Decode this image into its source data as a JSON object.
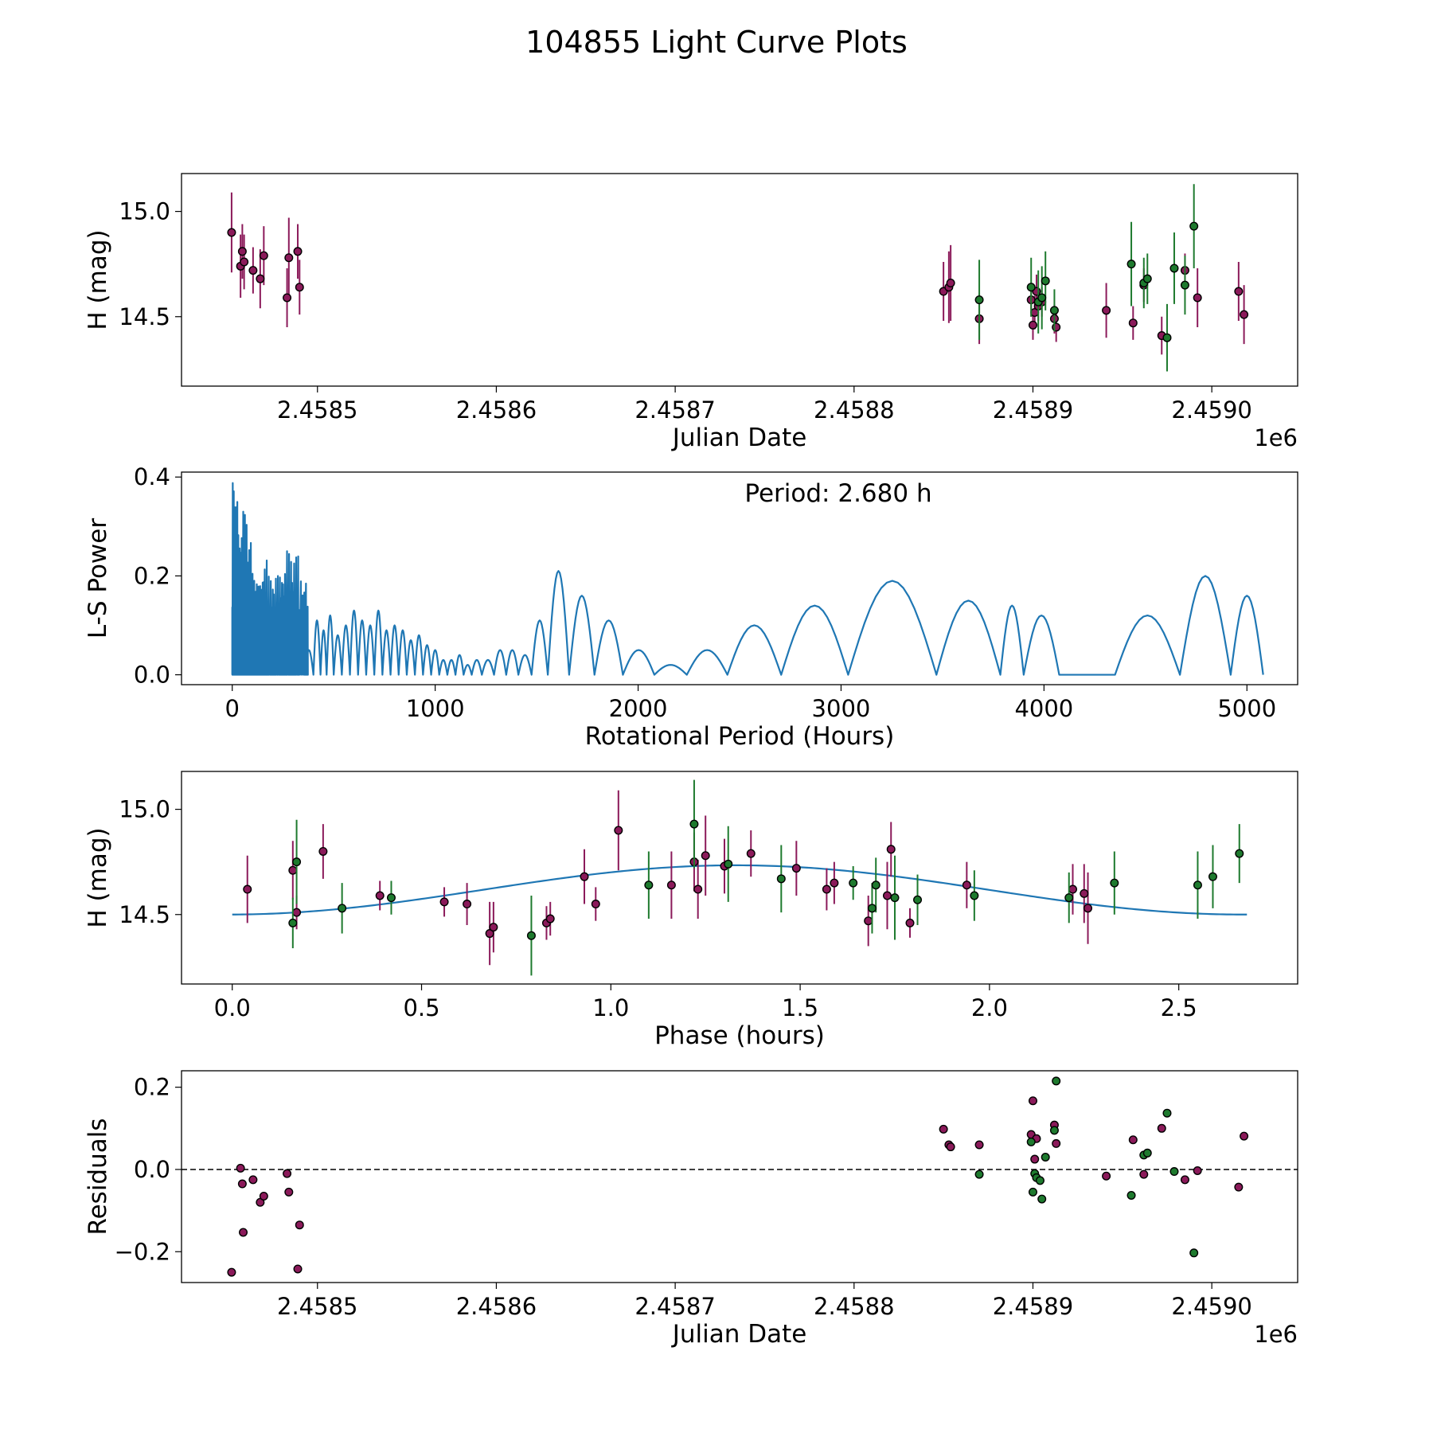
{
  "figure": {
    "title": "104855 Light Curve Plots"
  },
  "colors": {
    "magenta": "#8b1a5a",
    "green": "#1e7a2e",
    "line": "#1f77b4",
    "marker_edge": "#000000"
  },
  "chart_data": [
    {
      "type": "scatter",
      "title": "",
      "xlabel": "Julian Date",
      "ylabel": "H (mag)",
      "x_offset_label": "1e6",
      "xlim": [
        2458424,
        2459048
      ],
      "ylim": [
        14.17,
        15.18
      ],
      "xticks": [
        2458500,
        2458600,
        2458700,
        2458800,
        2458900,
        2459000
      ],
      "xtick_labels": [
        "2.4585",
        "2.4586",
        "2.4587",
        "2.4588",
        "2.4589",
        "2.4590"
      ],
      "yticks": [
        14.5,
        15.0
      ],
      "ytick_labels": [
        "14.5",
        "15.0"
      ],
      "series": [
        {
          "name": "magenta",
          "color": "magenta",
          "points": [
            [
              2458452,
              14.9,
              0.19
            ],
            [
              2458457,
              14.74,
              0.15
            ],
            [
              2458458,
              14.81,
              0.13
            ],
            [
              2458459,
              14.76,
              0.13
            ],
            [
              2458464,
              14.72,
              0.11
            ],
            [
              2458468,
              14.68,
              0.14
            ],
            [
              2458470,
              14.79,
              0.14
            ],
            [
              2458483,
              14.59,
              0.14
            ],
            [
              2458484,
              14.78,
              0.19
            ],
            [
              2458489,
              14.81,
              0.13
            ],
            [
              2458490,
              14.64,
              0.13
            ],
            [
              2458850,
              14.62,
              0.14
            ],
            [
              2458853,
              14.64,
              0.17
            ],
            [
              2458854,
              14.66,
              0.18
            ],
            [
              2458870,
              14.49,
              0.12
            ],
            [
              2458899,
              14.58,
              0.08
            ],
            [
              2458900,
              14.46,
              0.07
            ],
            [
              2458901,
              14.52,
              0.08
            ],
            [
              2458902,
              14.62,
              0.08
            ],
            [
              2458903,
              14.55,
              0.07
            ],
            [
              2458905,
              14.57,
              0.07
            ],
            [
              2458912,
              14.49,
              0.07
            ],
            [
              2458913,
              14.45,
              0.07
            ],
            [
              2458941,
              14.53,
              0.13
            ],
            [
              2458956,
              14.47,
              0.08
            ],
            [
              2458962,
              14.65,
              0.08
            ],
            [
              2458972,
              14.41,
              0.09
            ],
            [
              2458985,
              14.72,
              0.08
            ],
            [
              2458992,
              14.59,
              0.14
            ],
            [
              2459015,
              14.62,
              0.14
            ],
            [
              2459018,
              14.51,
              0.14
            ]
          ]
        },
        {
          "name": "green",
          "color": "green",
          "points": [
            [
              2458870,
              14.58,
              0.19
            ],
            [
              2458899,
              14.64,
              0.14
            ],
            [
              2458903,
              14.57,
              0.15
            ],
            [
              2458905,
              14.59,
              0.15
            ],
            [
              2458907,
              14.67,
              0.14
            ],
            [
              2458912,
              14.53,
              0.1
            ],
            [
              2458955,
              14.75,
              0.2
            ],
            [
              2458962,
              14.66,
              0.12
            ],
            [
              2458964,
              14.68,
              0.12
            ],
            [
              2458975,
              14.4,
              0.16
            ],
            [
              2458979,
              14.73,
              0.17
            ],
            [
              2458985,
              14.65,
              0.14
            ],
            [
              2458990,
              14.93,
              0.2
            ]
          ]
        }
      ]
    },
    {
      "type": "line",
      "title": "",
      "xlabel": "Rotational Period (Hours)",
      "ylabel": "L-S Power",
      "annotation": "Period: 2.680 h",
      "xlim": [
        -250,
        5250
      ],
      "ylim": [
        -0.02,
        0.41
      ],
      "xticks": [
        0,
        1000,
        2000,
        3000,
        4000,
        5000
      ],
      "xtick_labels": [
        "0",
        "1000",
        "2000",
        "3000",
        "4000",
        "5000"
      ],
      "yticks": [
        0.0,
        0.2,
        0.4
      ],
      "ytick_labels": [
        "0.0",
        "0.2",
        "0.4"
      ],
      "series": [
        {
          "name": "L-S power",
          "color": "line",
          "peaks_x": [
            0,
            15,
            30,
            50,
            75,
            100,
            125,
            150,
            180,
            210,
            240,
            270,
            300,
            330,
            380,
            420,
            450,
            480,
            520,
            560,
            600,
            640,
            680,
            720,
            760,
            800,
            840,
            880,
            920,
            960,
            1000,
            1040,
            1080,
            1120,
            1160,
            1200,
            1260,
            1320,
            1380,
            1440,
            1510,
            1600,
            1720,
            1850,
            2000,
            2160,
            2320,
            2560,
            2850,
            3220,
            3720,
            3850,
            3950,
            4200,
            4500,
            4840,
            5000
          ],
          "peaks_y": [
            0.39,
            0.35,
            0.3,
            0.33,
            0.27,
            0.21,
            0.18,
            0.24,
            0.2,
            0.2,
            0.22,
            0.25,
            0.24,
            0.21,
            0.05,
            0.11,
            0.09,
            0.12,
            0.08,
            0.1,
            0.13,
            0.11,
            0.1,
            0.13,
            0.09,
            0.1,
            0.09,
            0.07,
            0.08,
            0.06,
            0.05,
            0.03,
            0.03,
            0.04,
            0.02,
            0.03,
            0.03,
            0.05,
            0.05,
            0.04,
            0.11,
            0.21,
            0.16,
            0.11,
            0.05,
            0.02,
            0.05,
            0.1,
            0.14,
            0.19,
            0.15,
            0.14,
            0.12,
            0.0,
            0.12,
            0.2,
            0.16
          ]
        }
      ]
    },
    {
      "type": "scatter",
      "title": "",
      "xlabel": "Phase (hours)",
      "ylabel": "H (mag)",
      "xlim": [
        -0.134,
        2.814
      ],
      "ylim": [
        14.17,
        15.18
      ],
      "xticks": [
        0.0,
        0.5,
        1.0,
        1.5,
        2.0,
        2.5
      ],
      "xtick_labels": [
        "0.0",
        "0.5",
        "1.0",
        "1.5",
        "2.0",
        "2.5"
      ],
      "yticks": [
        14.5,
        15.0
      ],
      "ytick_labels": [
        "14.5",
        "15.0"
      ],
      "model": {
        "mean": 14.617,
        "amplitude": 0.117,
        "period": 2.68,
        "phase_of_max": 1.33,
        "x_range": [
          0.0,
          2.68
        ]
      },
      "series": [
        {
          "name": "magenta",
          "color": "magenta",
          "points": [
            [
              0.04,
              14.62,
              0.16
            ],
            [
              0.16,
              14.71,
              0.14
            ],
            [
              0.17,
              14.51,
              0.08
            ],
            [
              0.24,
              14.8,
              0.13
            ],
            [
              0.39,
              14.59,
              0.07
            ],
            [
              0.56,
              14.56,
              0.07
            ],
            [
              0.62,
              14.55,
              0.1
            ],
            [
              0.68,
              14.41,
              0.15
            ],
            [
              0.69,
              14.44,
              0.12
            ],
            [
              0.83,
              14.46,
              0.08
            ],
            [
              0.84,
              14.48,
              0.08
            ],
            [
              0.93,
              14.68,
              0.13
            ],
            [
              0.96,
              14.55,
              0.08
            ],
            [
              1.02,
              14.9,
              0.19
            ],
            [
              1.16,
              14.64,
              0.16
            ],
            [
              1.22,
              14.75,
              0.14
            ],
            [
              1.23,
              14.62,
              0.14
            ],
            [
              1.25,
              14.78,
              0.19
            ],
            [
              1.3,
              14.73,
              0.13
            ],
            [
              1.37,
              14.79,
              0.11
            ],
            [
              1.49,
              14.72,
              0.13
            ],
            [
              1.57,
              14.62,
              0.1
            ],
            [
              1.59,
              14.65,
              0.1
            ],
            [
              1.68,
              14.47,
              0.12
            ],
            [
              1.73,
              14.59,
              0.16
            ],
            [
              1.74,
              14.81,
              0.13
            ],
            [
              1.79,
              14.46,
              0.07
            ],
            [
              1.94,
              14.64,
              0.11
            ],
            [
              2.22,
              14.62,
              0.12
            ],
            [
              2.25,
              14.6,
              0.14
            ],
            [
              2.26,
              14.53,
              0.17
            ]
          ]
        },
        {
          "name": "green",
          "color": "green",
          "points": [
            [
              0.16,
              14.46,
              0.12
            ],
            [
              0.17,
              14.75,
              0.2
            ],
            [
              0.29,
              14.53,
              0.12
            ],
            [
              0.42,
              14.58,
              0.08
            ],
            [
              0.79,
              14.4,
              0.19
            ],
            [
              1.1,
              14.64,
              0.16
            ],
            [
              1.22,
              14.93,
              0.21
            ],
            [
              1.31,
              14.74,
              0.18
            ],
            [
              1.45,
              14.67,
              0.16
            ],
            [
              1.64,
              14.65,
              0.08
            ],
            [
              1.69,
              14.53,
              0.12
            ],
            [
              1.7,
              14.64,
              0.13
            ],
            [
              1.75,
              14.58,
              0.2
            ],
            [
              1.81,
              14.57,
              0.12
            ],
            [
              1.96,
              14.59,
              0.12
            ],
            [
              2.21,
              14.58,
              0.12
            ],
            [
              2.33,
              14.65,
              0.15
            ],
            [
              2.55,
              14.64,
              0.16
            ],
            [
              2.59,
              14.68,
              0.15
            ],
            [
              2.66,
              14.79,
              0.14
            ]
          ]
        }
      ]
    },
    {
      "type": "scatter",
      "title": "",
      "xlabel": "Julian Date",
      "ylabel": "Residuals",
      "x_offset_label": "1e6",
      "xlim": [
        2458424,
        2459048
      ],
      "ylim": [
        -0.275,
        0.24
      ],
      "xticks": [
        2458500,
        2458600,
        2458700,
        2458800,
        2458900,
        2459000
      ],
      "xtick_labels": [
        "2.4585",
        "2.4586",
        "2.4587",
        "2.4588",
        "2.4589",
        "2.4590"
      ],
      "yticks": [
        -0.2,
        0.0,
        0.2
      ],
      "ytick_labels": [
        "−0.2",
        "0.0",
        "0.2"
      ],
      "reference_line": 0.0,
      "series": [
        {
          "name": "magenta",
          "color": "magenta",
          "points": [
            [
              2458452,
              -0.25
            ],
            [
              2458457,
              0.003
            ],
            [
              2458458,
              -0.035
            ],
            [
              2458458.5,
              -0.153
            ],
            [
              2458464,
              -0.025
            ],
            [
              2458468,
              -0.08
            ],
            [
              2458470,
              -0.065
            ],
            [
              2458483,
              -0.01
            ],
            [
              2458484,
              -0.055
            ],
            [
              2458489,
              -0.242
            ],
            [
              2458490,
              -0.135
            ],
            [
              2458850,
              0.098
            ],
            [
              2458853,
              0.06
            ],
            [
              2458854,
              0.055
            ],
            [
              2458870,
              0.06
            ],
            [
              2458899,
              0.085
            ],
            [
              2458900,
              0.167
            ],
            [
              2458901,
              0.025
            ],
            [
              2458902,
              0.075
            ],
            [
              2458912,
              0.108
            ],
            [
              2458913,
              0.063
            ],
            [
              2458941,
              -0.016
            ],
            [
              2458956,
              0.072
            ],
            [
              2458962,
              -0.012
            ],
            [
              2458972,
              0.1
            ],
            [
              2458985,
              -0.025
            ],
            [
              2458992,
              -0.003
            ],
            [
              2459015,
              -0.043
            ],
            [
              2459018,
              0.081
            ]
          ]
        },
        {
          "name": "green",
          "color": "green",
          "points": [
            [
              2458870,
              -0.012
            ],
            [
              2458899,
              0.067
            ],
            [
              2458900,
              -0.055
            ],
            [
              2458901,
              -0.01
            ],
            [
              2458902,
              -0.02
            ],
            [
              2458904,
              -0.027
            ],
            [
              2458905,
              -0.072
            ],
            [
              2458907,
              0.03
            ],
            [
              2458912,
              0.095
            ],
            [
              2458913,
              0.215
            ],
            [
              2458955,
              -0.063
            ],
            [
              2458962,
              0.035
            ],
            [
              2458964,
              0.04
            ],
            [
              2458975,
              0.137
            ],
            [
              2458979,
              -0.005
            ],
            [
              2458990,
              -0.203
            ]
          ]
        }
      ]
    }
  ]
}
